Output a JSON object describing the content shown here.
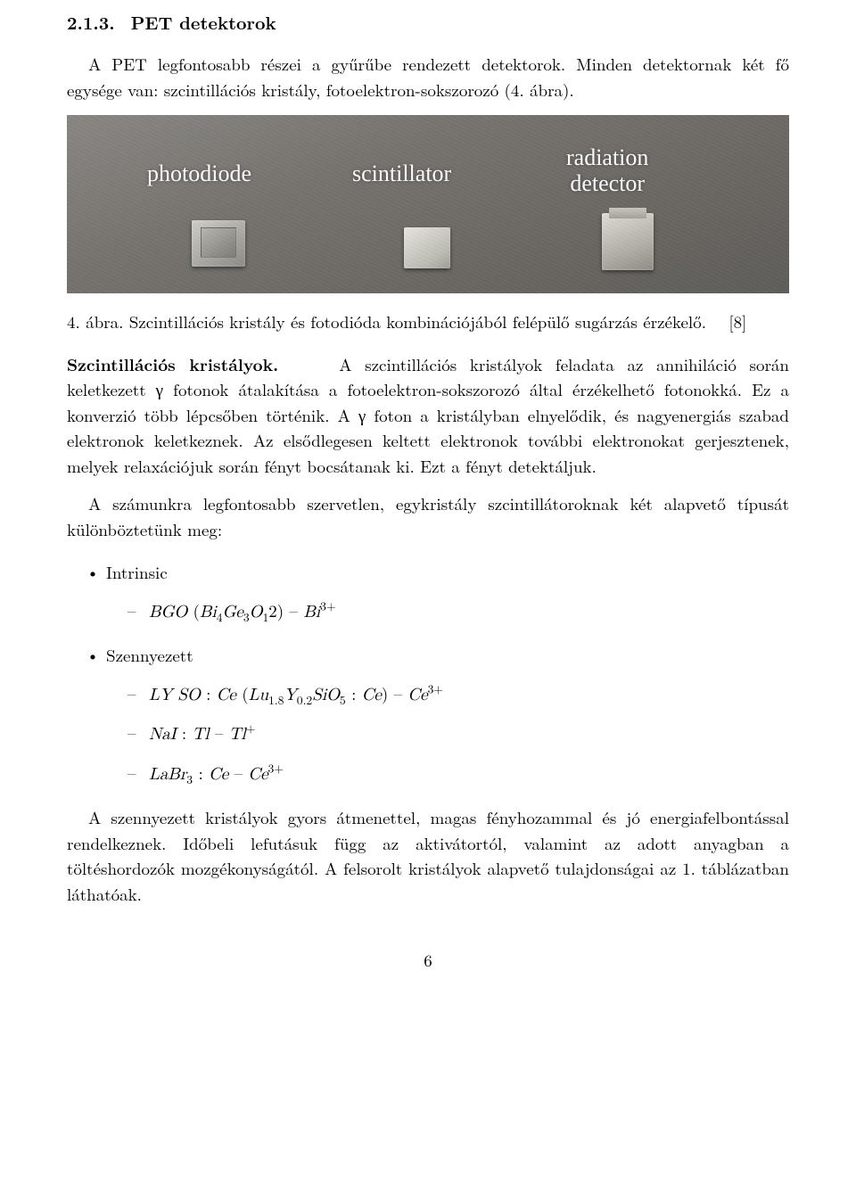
{
  "heading": {
    "number": "2.1.3.",
    "title": "PET detektorok"
  },
  "intro": "A PET legfontosabb részei a gyűrűbe rendezett detektorok. Minden detektornak két fő egysége van: szcintillációs kristály, fotoelektron-sokszorozó (4. ábra).",
  "figure": {
    "labels": {
      "l1": "photodiode",
      "l2": "scintillator",
      "l3a": "radiation",
      "l3b": "detector"
    },
    "caption_prefix": "4. ábra.",
    "caption_text": "Szcintillációs kristály és fotodióda kombinációjából felépülő sugárzás érzékelő.",
    "ref": "[8]"
  },
  "para1_runin": "Szcintillációs kristályok.",
  "para1": "A szcintillációs kristályok feladata az annihiláció során keletkezett γ fotonok átalakítása a fotoelektron-sokszorozó által érzékelhető fotonokká. Ez a konverzió több lépcsőben történik. A γ foton a kristályban elnyelődik, és nagyenergiás szabad elektronok keletkeznek. Az elsődlegesen keltett elektronok további elektronokat gerjesztenek, melyek relaxációjuk során fényt bocsátanak ki. Ezt a fényt detektáljuk.",
  "para2": "A számunkra legfontosabb szervetlen, egykristály szcintillátoroknak két alapvető típusát különböztetünk meg:",
  "list": {
    "intrinsic_label": "Intrinsic",
    "szennyezett_label": "Szennyezett",
    "items": {
      "bgo": "BGO (Bi₄Ge₃O₁2) – Bi³⁺",
      "lyso": "LY SO : Ce (Lu₁.₈Y₀.₂SiO₅ : Ce) – Ce³⁺",
      "nai": "NaI : Tl – Tl⁺",
      "labr": "LaBr₃ : Ce – Ce³⁺"
    }
  },
  "para3": "A szennyezett kristályok gyors átmenettel, magas fényhozammal és jó energiafelbontással rendelkeznek. Időbeli lefutásuk függ az aktivátortól, valamint az adott anyagban a töltéshordozók mozgékonyságától. A felsorolt kristályok alapvető tulajdonságai az 1. táblázatban láthatóak.",
  "page_number": "6"
}
